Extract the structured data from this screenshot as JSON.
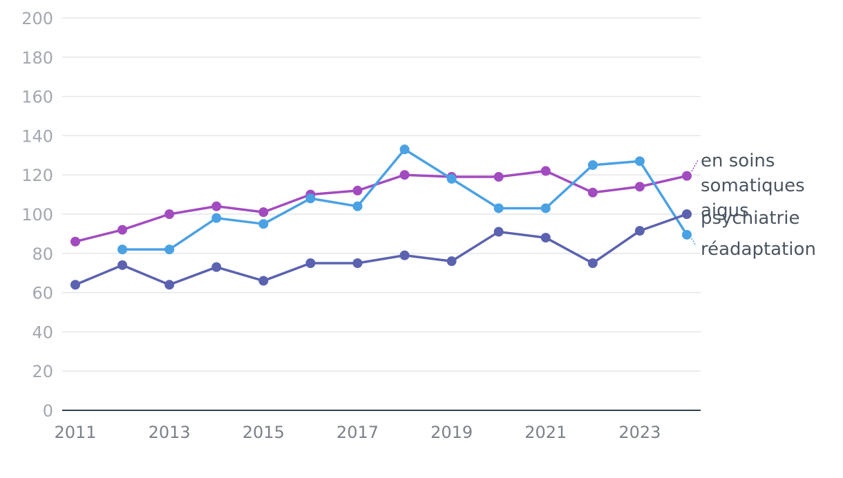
{
  "chart_data": {
    "type": "line",
    "title": "",
    "xlabel": "",
    "ylabel": "",
    "ylim": [
      0,
      200
    ],
    "y_ticks": [
      0,
      20,
      40,
      60,
      80,
      100,
      120,
      140,
      160,
      180,
      200
    ],
    "x": [
      2011,
      2012,
      2013,
      2014,
      2015,
      2016,
      2017,
      2018,
      2019,
      2020,
      2021,
      2022,
      2023,
      2024
    ],
    "x_tick_labels": [
      "2011",
      "2013",
      "2015",
      "2017",
      "2019",
      "2021",
      "2023"
    ],
    "grid": true,
    "legend": "inline-right",
    "series": [
      {
        "name": "en soins somatiques aigus",
        "label_lines": [
          "en soins",
          "somatiques",
          "aigus"
        ],
        "color": "#a24bbf",
        "values": [
          86,
          92,
          100,
          104,
          101,
          110,
          112,
          120,
          119,
          119,
          122,
          111,
          114,
          119.5
        ]
      },
      {
        "name": "réadaptation",
        "label_lines": [
          "réadaptation"
        ],
        "color": "#4aa1e3",
        "values": [
          null,
          82,
          82,
          98,
          95,
          108,
          104,
          133,
          118,
          103,
          103,
          125,
          127,
          89.5
        ]
      },
      {
        "name": "psychiatrie",
        "label_lines": [
          "psychiatrie"
        ],
        "color": "#5b62b0",
        "values": [
          64,
          74,
          64,
          73,
          66,
          75,
          75,
          79,
          76,
          91,
          88,
          75,
          91.5,
          100
        ]
      }
    ]
  }
}
